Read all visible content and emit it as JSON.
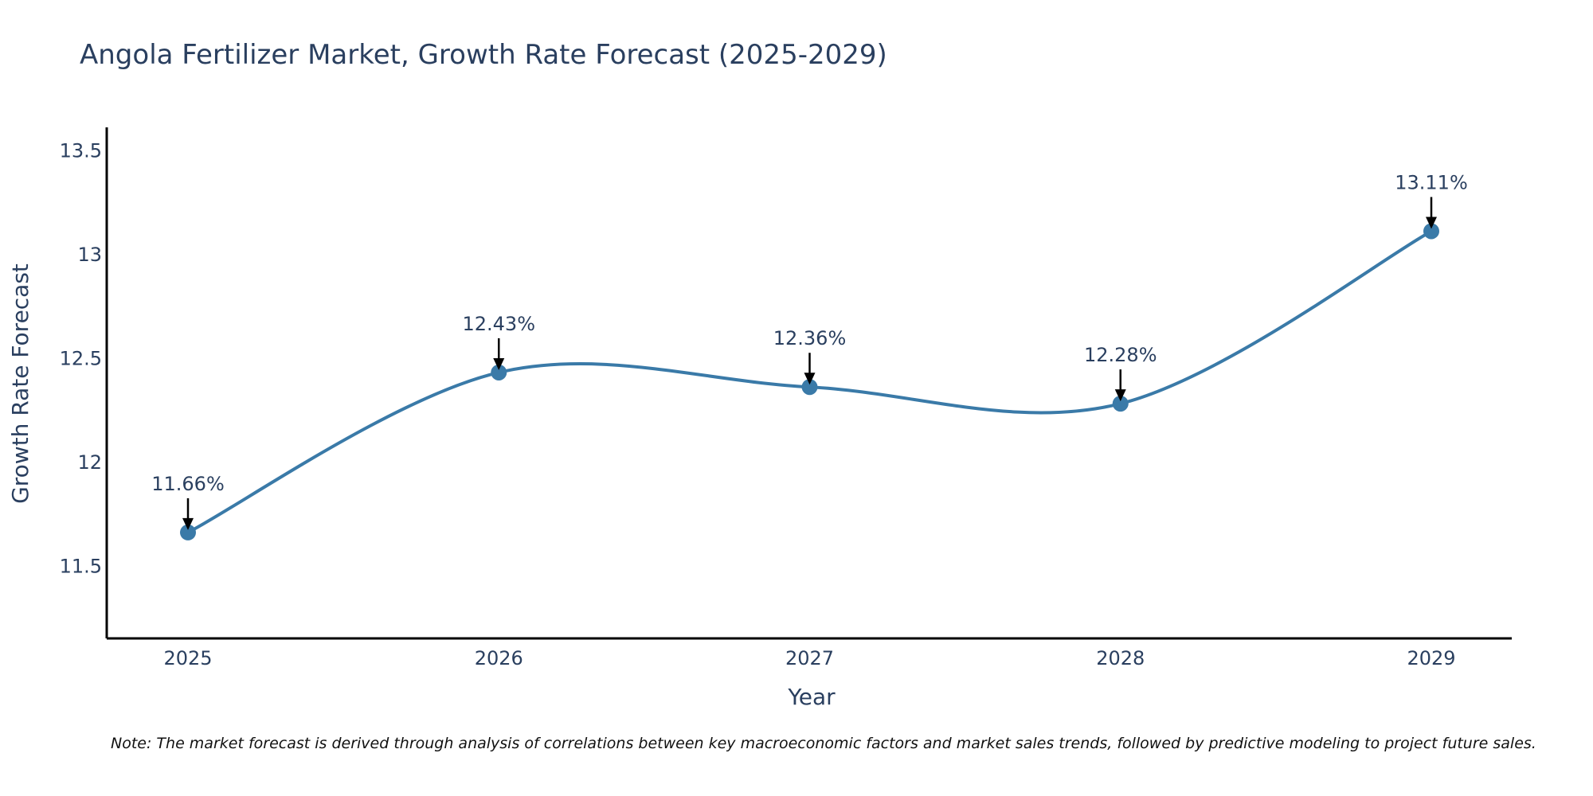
{
  "chart_data": {
    "type": "line",
    "title": "Angola Fertilizer Market, Growth Rate Forecast (2025-2029)",
    "xlabel": "Year",
    "ylabel": "Growth Rate Forecast",
    "x": [
      "2025",
      "2026",
      "2027",
      "2028",
      "2029"
    ],
    "series": [
      {
        "name": "Growth Rate Forecast",
        "values": [
          11.66,
          12.43,
          12.36,
          12.28,
          13.11
        ],
        "labels": [
          "11.66%",
          "12.43%",
          "12.36%",
          "12.28%",
          "13.11%"
        ],
        "color": "#3a7aa8"
      }
    ],
    "ylim": [
      11.15,
      13.61
    ],
    "yticks": [
      11.5,
      12,
      12.5,
      13,
      13.5
    ],
    "ytick_labels": [
      "11.5",
      "12",
      "12.5",
      "13",
      "13.5"
    ],
    "grid": false,
    "smooth": true
  },
  "note": "Note: The market forecast is derived through analysis of correlations between key macroeconomic factors and market sales trends, followed by predictive modeling to project future sales."
}
